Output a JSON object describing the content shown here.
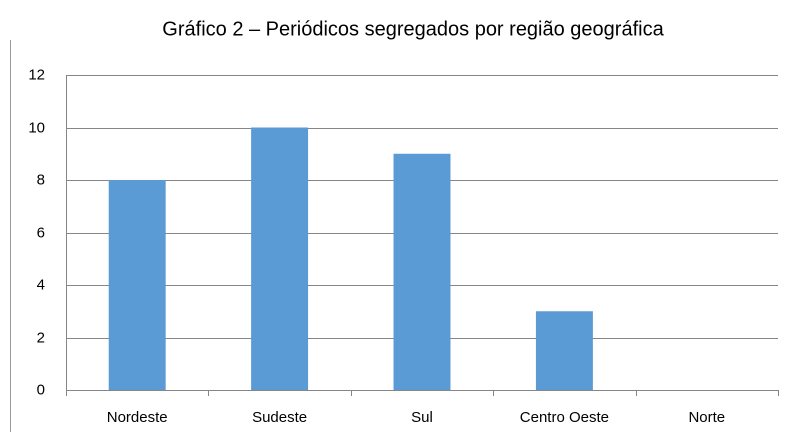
{
  "chart_data": {
    "type": "bar",
    "title": "Gráfico 2 – Periódicos segregados por região geográfica",
    "categories": [
      "Nordeste",
      "Sudeste",
      "Sul",
      "Centro Oeste",
      "Norte"
    ],
    "values": [
      8,
      10,
      9,
      3,
      0
    ],
    "color": "#5b9bd5",
    "ylim": [
      0,
      12
    ],
    "yticks": [
      0,
      2,
      4,
      6,
      8,
      10,
      12
    ],
    "grid": true
  }
}
